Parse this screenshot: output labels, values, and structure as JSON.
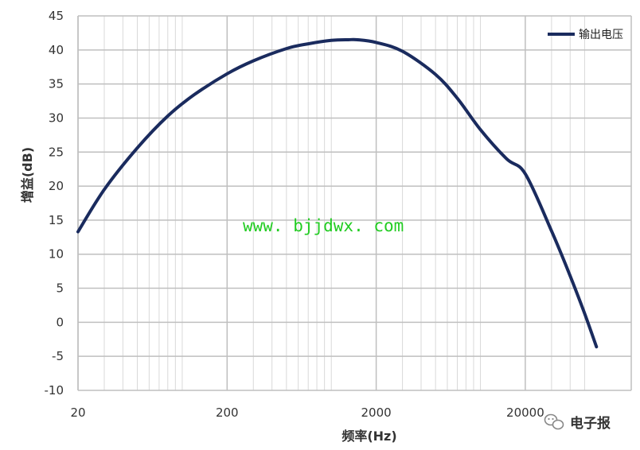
{
  "chart_data": {
    "type": "line",
    "x_scale": "log",
    "xlim": [
      20,
      60000
    ],
    "ylim": [
      -10,
      45
    ],
    "x_ticks": [
      20,
      200,
      2000,
      20000
    ],
    "y_ticks": [
      -10,
      -5,
      0,
      5,
      10,
      15,
      20,
      25,
      30,
      35,
      40,
      45
    ],
    "xlabel": "频率(Hz)",
    "ylabel": "增益(dB)",
    "grid": true,
    "legend_position": "top-right",
    "series": [
      {
        "name": "输出电压",
        "color": "#1a2b5e",
        "x": [
          20,
          30,
          50,
          80,
          120,
          200,
          300,
          500,
          700,
          1000,
          1300,
          1500,
          2000,
          3000,
          5000,
          7000,
          10000,
          15000,
          20000,
          30000,
          40000,
          50000,
          60000
        ],
        "y": [
          13.3,
          19.5,
          25.6,
          30.3,
          33.4,
          36.5,
          38.4,
          40.2,
          40.9,
          41.4,
          41.5,
          41.5,
          41.1,
          39.8,
          36.4,
          32.9,
          28.3,
          24.0,
          21.8,
          13.4,
          6.8,
          1.3,
          -3.6
        ]
      }
    ]
  },
  "watermark": "www. bjjdwx. com",
  "brand": "电子报"
}
